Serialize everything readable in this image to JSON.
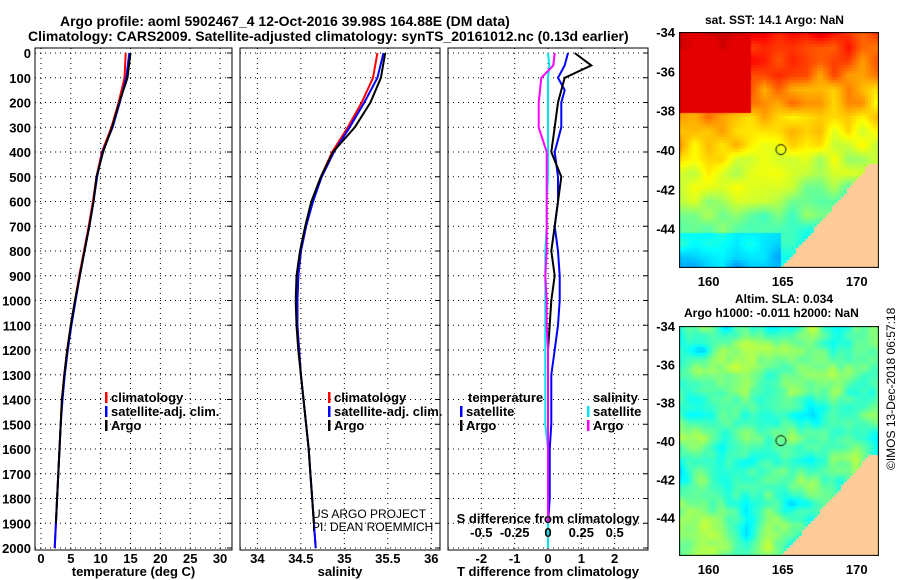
{
  "title_line1": "Argo profile: aoml 5902467_4 12-Oct-2016 39.98S 164.88E (DM data)",
  "title_line2": "Climatology: CARS2009. Satellite-adjusted climatology: synTS_20161012.nc (0.13d earlier)",
  "credit_line1": "US ARGO PROJECT",
  "credit_line2": "PI: DEAN ROEMMICH",
  "stamp": "©IMOS 13-Dec-2018 06:57:18",
  "colors": {
    "climatology": "#ff0000",
    "satellite": "#0000ff",
    "argo": "#000000",
    "sal_satellite": "#00e5ee",
    "sal_argo": "#ff00ff"
  },
  "chart_data": [
    {
      "type": "line",
      "title": "",
      "xlabel": "temperature (deg C)",
      "ylabel": "depth",
      "xlim": [
        -1,
        32
      ],
      "ylim": [
        2050,
        0
      ],
      "xticks": [
        0,
        5,
        10,
        15,
        20,
        25,
        30
      ],
      "yticks": [
        0,
        100,
        200,
        300,
        400,
        500,
        600,
        700,
        800,
        900,
        1000,
        1100,
        1200,
        1300,
        1400,
        1500,
        1600,
        1700,
        1800,
        1900,
        2000
      ],
      "grid": true,
      "legend_position": "lower-right",
      "depth": [
        0,
        100,
        200,
        300,
        400,
        500,
        600,
        700,
        800,
        900,
        1000,
        1100,
        1200,
        1300,
        1400,
        1500,
        1600,
        1700,
        1800,
        1900,
        2000
      ],
      "series": [
        {
          "name": "climatology",
          "values": [
            14.2,
            14.0,
            13.0,
            11.8,
            10.2,
            9.3,
            8.7,
            8.0,
            7.2,
            6.4,
            5.7,
            5.0,
            4.4,
            3.9,
            3.5,
            3.3,
            3.1,
            2.9,
            2.7,
            2.5,
            2.3
          ]
        },
        {
          "name": "satellite-adj. clim.",
          "values": [
            14.8,
            14.3,
            13.2,
            12.0,
            10.3,
            9.4,
            8.8,
            8.1,
            7.3,
            6.5,
            5.8,
            5.1,
            4.5,
            4.0,
            3.6,
            3.3,
            3.1,
            2.9,
            2.7,
            2.5,
            2.3
          ]
        },
        {
          "name": "Argo",
          "values": [
            15.0,
            14.5,
            13.1,
            11.9,
            10.4,
            9.3,
            8.8,
            8.1,
            7.3,
            6.5,
            5.7,
            5.0,
            4.4,
            3.9,
            3.5,
            3.3,
            3.1,
            2.9,
            2.7,
            2.5,
            null
          ]
        }
      ]
    },
    {
      "type": "line",
      "xlabel": "salinity",
      "xlim": [
        33.8,
        36.1
      ],
      "ylim": [
        2050,
        0
      ],
      "xticks": [
        34,
        34.5,
        35,
        35.5,
        36
      ],
      "grid": true,
      "legend_position": "lower-right",
      "depth": [
        0,
        100,
        200,
        300,
        400,
        500,
        600,
        700,
        800,
        900,
        1000,
        1100,
        1200,
        1300,
        1400,
        1500,
        1600,
        1700,
        1800,
        1900,
        2000
      ],
      "series": [
        {
          "name": "climatology",
          "values": [
            35.38,
            35.33,
            35.2,
            35.04,
            34.86,
            34.73,
            34.63,
            34.56,
            34.5,
            34.47,
            34.46,
            34.46,
            34.48,
            34.5,
            34.53,
            34.56,
            34.59,
            34.61,
            34.63,
            34.65,
            34.67
          ]
        },
        {
          "name": "satellite-adj. clim.",
          "values": [
            35.45,
            35.38,
            35.23,
            35.06,
            34.88,
            34.74,
            34.64,
            34.56,
            34.5,
            34.47,
            34.46,
            34.46,
            34.48,
            34.5,
            34.53,
            34.56,
            34.59,
            34.61,
            34.63,
            34.65,
            34.67
          ]
        },
        {
          "name": "Argo",
          "values": [
            35.47,
            35.42,
            35.3,
            35.12,
            34.87,
            34.73,
            34.62,
            34.55,
            34.49,
            34.45,
            34.44,
            34.45,
            34.47,
            34.5,
            34.53,
            34.56,
            34.59,
            34.61,
            34.63,
            34.65,
            null
          ]
        }
      ]
    },
    {
      "type": "line",
      "xlabel": "T difference from climatology",
      "x2label": "S difference from climatology",
      "xlim": [
        -3,
        3
      ],
      "x2lim": [
        -0.75,
        0.75
      ],
      "ylim": [
        2050,
        0
      ],
      "xticks": [
        -2,
        -1,
        0,
        1,
        2
      ],
      "x2ticks": [
        -0.5,
        -0.25,
        0,
        0.25,
        0.5
      ],
      "grid": true,
      "legend_groups": [
        "temperature",
        "salinity"
      ],
      "depth": [
        0,
        50,
        100,
        150,
        200,
        300,
        400,
        500,
        600,
        700,
        800,
        900,
        1000,
        1100,
        1200,
        1300,
        1400,
        1500,
        1600,
        1700,
        1800,
        1900,
        2000
      ],
      "series": [
        {
          "name": "temperature satellite",
          "values": [
            0.6,
            0.5,
            0.3,
            0.5,
            0.4,
            0.4,
            0.2,
            0.3,
            0.3,
            0.2,
            0.3,
            0.35,
            0.35,
            0.3,
            0.2,
            0.1,
            0.1,
            0.1,
            0.05,
            0.05,
            0.05,
            0.0,
            0.0
          ]
        },
        {
          "name": "temperature Argo",
          "values": [
            0.8,
            1.3,
            0.5,
            0.4,
            0.3,
            0.2,
            0.1,
            0.4,
            0.3,
            0.2,
            0.1,
            0.2,
            0.1,
            0.05,
            0.0,
            0.0,
            0.0,
            0.0,
            0.0,
            0.0,
            0.0,
            0.0,
            null
          ]
        },
        {
          "name": "salinity satellite",
          "values": [
            0.0,
            0.01,
            0.0,
            0.0,
            0.0,
            0.0,
            0.0,
            0.0,
            -0.01,
            -0.01,
            -0.02,
            -0.02,
            -0.02,
            -0.02,
            -0.02,
            -0.02,
            -0.02,
            -0.02,
            0.0,
            0.0,
            0.0,
            0.0,
            0.0
          ]
        },
        {
          "name": "salinity Argo",
          "values": [
            0.05,
            0.04,
            -0.05,
            -0.06,
            -0.07,
            -0.07,
            -0.01,
            -0.01,
            -0.01,
            -0.01,
            -0.01,
            -0.02,
            -0.01,
            -0.01,
            0.0,
            0.0,
            0.0,
            0.0,
            0.0,
            0.0,
            0.0,
            0.0,
            null
          ]
        }
      ]
    },
    {
      "type": "heatmap",
      "title": "sat. SST: 14.1 Argo: NaN",
      "xticks": [
        160,
        165,
        170
      ],
      "yticks": [
        -34,
        -36,
        -38,
        -40,
        -42,
        -44
      ],
      "xlim": [
        158,
        171.5
      ],
      "ylim": [
        -46,
        -34
      ],
      "marker": {
        "lon": 164.88,
        "lat": -39.98
      }
    },
    {
      "type": "heatmap",
      "title": "Altim. SLA: 0.034",
      "subtitle": "Argo h1000: -0.011 h2000: NaN",
      "xticks": [
        160,
        165,
        170
      ],
      "yticks": [
        -34,
        -36,
        -38,
        -40,
        -42,
        -44
      ],
      "xlim": [
        158,
        171.5
      ],
      "ylim": [
        -46,
        -34
      ],
      "marker": {
        "lon": 164.88,
        "lat": -39.98
      }
    }
  ],
  "legend": {
    "climatology": "climatology",
    "satellite_adj": "satellite-adj. clim.",
    "argo": "Argo",
    "temperature": "temperature",
    "salinity": "salinity",
    "satellite": "satellite"
  }
}
